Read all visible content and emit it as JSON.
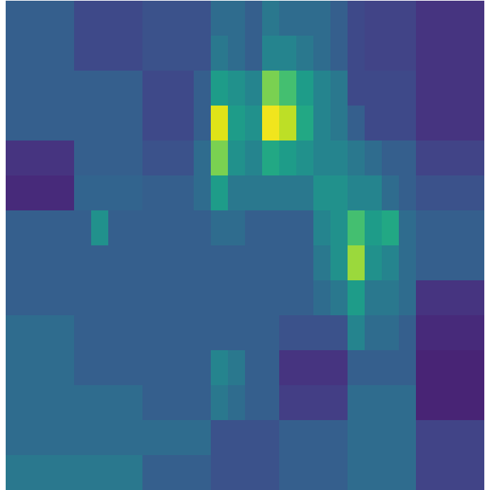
{
  "chart_data": {
    "type": "heatmap",
    "color": "viridis",
    "color_range": [
      0,
      1
    ],
    "tick_labels": false,
    "cells": [
      [
        0.3,
        0.3,
        0.3,
        0.3,
        0.22,
        0.22,
        0.22,
        0.22,
        0.25,
        0.25,
        0.25,
        0.25,
        0.35,
        0.35,
        0.3,
        0.4,
        0.35,
        0.35,
        0.35,
        0.3,
        0.22,
        0.2,
        0.2,
        0.2,
        0.15,
        0.15,
        0.15,
        0.15
      ],
      [
        0.3,
        0.3,
        0.3,
        0.3,
        0.22,
        0.22,
        0.22,
        0.22,
        0.25,
        0.25,
        0.25,
        0.25,
        0.4,
        0.35,
        0.3,
        0.45,
        0.45,
        0.4,
        0.35,
        0.3,
        0.22,
        0.2,
        0.2,
        0.2,
        0.15,
        0.15,
        0.15,
        0.15
      ],
      [
        0.3,
        0.3,
        0.3,
        0.3,
        0.3,
        0.3,
        0.3,
        0.3,
        0.22,
        0.22,
        0.22,
        0.3,
        0.55,
        0.5,
        0.45,
        0.8,
        0.7,
        0.55,
        0.45,
        0.4,
        0.22,
        0.22,
        0.22,
        0.22,
        0.15,
        0.15,
        0.15,
        0.15
      ],
      [
        0.3,
        0.3,
        0.3,
        0.3,
        0.3,
        0.3,
        0.3,
        0.3,
        0.22,
        0.22,
        0.22,
        0.3,
        0.95,
        0.55,
        0.5,
        0.98,
        0.9,
        0.6,
        0.45,
        0.4,
        0.3,
        0.22,
        0.22,
        0.22,
        0.15,
        0.15,
        0.15,
        0.15
      ],
      [
        0.15,
        0.15,
        0.15,
        0.15,
        0.3,
        0.3,
        0.3,
        0.3,
        0.25,
        0.25,
        0.25,
        0.35,
        0.8,
        0.5,
        0.45,
        0.6,
        0.55,
        0.5,
        0.45,
        0.45,
        0.4,
        0.35,
        0.3,
        0.3,
        0.2,
        0.2,
        0.2,
        0.2
      ],
      [
        0.12,
        0.12,
        0.12,
        0.12,
        0.32,
        0.32,
        0.32,
        0.32,
        0.3,
        0.3,
        0.3,
        0.35,
        0.55,
        0.4,
        0.4,
        0.4,
        0.4,
        0.4,
        0.5,
        0.5,
        0.45,
        0.45,
        0.35,
        0.3,
        0.25,
        0.25,
        0.25,
        0.25
      ],
      [
        0.3,
        0.3,
        0.3,
        0.3,
        0.3,
        0.5,
        0.3,
        0.3,
        0.3,
        0.3,
        0.3,
        0.3,
        0.35,
        0.35,
        0.3,
        0.3,
        0.3,
        0.3,
        0.45,
        0.5,
        0.7,
        0.55,
        0.6,
        0.35,
        0.3,
        0.3,
        0.3,
        0.3
      ],
      [
        0.3,
        0.3,
        0.3,
        0.3,
        0.3,
        0.3,
        0.3,
        0.3,
        0.3,
        0.3,
        0.3,
        0.3,
        0.3,
        0.3,
        0.3,
        0.3,
        0.3,
        0.3,
        0.4,
        0.5,
        0.85,
        0.5,
        0.45,
        0.35,
        0.3,
        0.3,
        0.3,
        0.3
      ],
      [
        0.3,
        0.3,
        0.3,
        0.3,
        0.3,
        0.3,
        0.3,
        0.3,
        0.3,
        0.3,
        0.3,
        0.3,
        0.3,
        0.3,
        0.3,
        0.3,
        0.3,
        0.3,
        0.35,
        0.4,
        0.55,
        0.4,
        0.4,
        0.35,
        0.15,
        0.15,
        0.15,
        0.15
      ],
      [
        0.35,
        0.35,
        0.35,
        0.35,
        0.3,
        0.3,
        0.3,
        0.3,
        0.3,
        0.3,
        0.3,
        0.3,
        0.3,
        0.3,
        0.3,
        0.3,
        0.25,
        0.25,
        0.25,
        0.25,
        0.45,
        0.35,
        0.35,
        0.3,
        0.12,
        0.12,
        0.12,
        0.12
      ],
      [
        0.35,
        0.35,
        0.35,
        0.35,
        0.3,
        0.3,
        0.3,
        0.3,
        0.3,
        0.3,
        0.3,
        0.3,
        0.45,
        0.4,
        0.3,
        0.3,
        0.15,
        0.15,
        0.15,
        0.15,
        0.3,
        0.3,
        0.3,
        0.3,
        0.1,
        0.1,
        0.1,
        0.1
      ],
      [
        0.35,
        0.35,
        0.35,
        0.35,
        0.35,
        0.35,
        0.35,
        0.35,
        0.3,
        0.3,
        0.3,
        0.3,
        0.4,
        0.35,
        0.3,
        0.3,
        0.18,
        0.18,
        0.18,
        0.18,
        0.35,
        0.35,
        0.35,
        0.35,
        0.1,
        0.1,
        0.1,
        0.1
      ],
      [
        0.35,
        0.35,
        0.35,
        0.35,
        0.35,
        0.35,
        0.35,
        0.35,
        0.35,
        0.35,
        0.35,
        0.35,
        0.25,
        0.25,
        0.25,
        0.25,
        0.3,
        0.3,
        0.3,
        0.3,
        0.35,
        0.35,
        0.35,
        0.35,
        0.2,
        0.2,
        0.2,
        0.2
      ],
      [
        0.4,
        0.4,
        0.4,
        0.4,
        0.4,
        0.4,
        0.4,
        0.4,
        0.3,
        0.3,
        0.3,
        0.3,
        0.25,
        0.25,
        0.25,
        0.25,
        0.3,
        0.3,
        0.3,
        0.3,
        0.35,
        0.35,
        0.35,
        0.35,
        0.2,
        0.2,
        0.2,
        0.2
      ]
    ]
  }
}
